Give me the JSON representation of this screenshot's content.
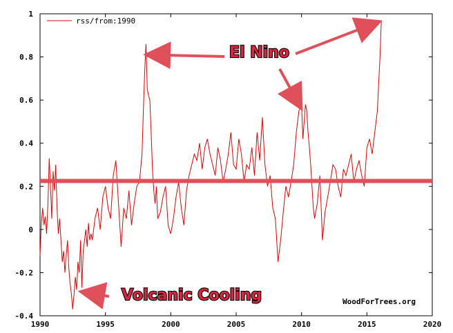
{
  "chart_data": {
    "type": "line",
    "series": [
      {
        "name": "rss/from:1990",
        "color": "#dd0000",
        "x": [
          1990.0,
          1990.1,
          1990.2,
          1990.3,
          1990.4,
          1990.5,
          1990.6,
          1990.7,
          1990.8,
          1990.9,
          1991.0,
          1991.1,
          1991.2,
          1991.3,
          1991.4,
          1991.5,
          1991.6,
          1991.7,
          1991.8,
          1991.9,
          1992.0,
          1992.1,
          1992.2,
          1992.3,
          1992.4,
          1992.5,
          1992.6,
          1992.7,
          1992.8,
          1992.9,
          1993.0,
          1993.1,
          1993.2,
          1993.3,
          1993.4,
          1993.5,
          1993.6,
          1993.7,
          1993.8,
          1993.9,
          1994.0,
          1994.2,
          1994.4,
          1994.6,
          1994.8,
          1995.0,
          1995.2,
          1995.4,
          1995.6,
          1995.8,
          1996.0,
          1996.2,
          1996.4,
          1996.6,
          1996.8,
          1997.0,
          1997.2,
          1997.4,
          1997.6,
          1997.8,
          1997.9,
          1998.0,
          1998.1,
          1998.2,
          1998.3,
          1998.4,
          1998.5,
          1998.6,
          1998.7,
          1998.8,
          1998.9,
          1999.0,
          1999.2,
          1999.4,
          1999.6,
          1999.8,
          2000.0,
          2000.2,
          2000.4,
          2000.6,
          2000.8,
          2001.0,
          2001.2,
          2001.4,
          2001.6,
          2001.8,
          2002.0,
          2002.2,
          2002.4,
          2002.6,
          2002.8,
          2003.0,
          2003.2,
          2003.4,
          2003.6,
          2003.8,
          2004.0,
          2004.2,
          2004.4,
          2004.6,
          2004.8,
          2005.0,
          2005.2,
          2005.4,
          2005.6,
          2005.8,
          2006.0,
          2006.2,
          2006.4,
          2006.6,
          2006.8,
          2007.0,
          2007.2,
          2007.4,
          2007.6,
          2007.8,
          2008.0,
          2008.2,
          2008.4,
          2008.6,
          2008.8,
          2009.0,
          2009.2,
          2009.4,
          2009.6,
          2009.8,
          2010.0,
          2010.1,
          2010.2,
          2010.3,
          2010.4,
          2010.5,
          2010.6,
          2010.7,
          2010.8,
          2010.9,
          2011.0,
          2011.2,
          2011.4,
          2011.6,
          2011.8,
          2012.0,
          2012.2,
          2012.4,
          2012.6,
          2012.8,
          2013.0,
          2013.2,
          2013.4,
          2013.6,
          2013.8,
          2014.0,
          2014.2,
          2014.4,
          2014.6,
          2014.8,
          2015.0,
          2015.2,
          2015.4,
          2015.6,
          2015.8,
          2015.9,
          2016.0,
          2016.1
        ],
        "y": [
          -0.12,
          0.03,
          0.1,
          0.02,
          0.06,
          -0.02,
          0.12,
          0.33,
          0.2,
          0.05,
          0.27,
          0.18,
          0.3,
          0.1,
          -0.02,
          0.05,
          -0.05,
          -0.15,
          -0.1,
          -0.2,
          -0.12,
          -0.05,
          -0.18,
          -0.25,
          -0.3,
          -0.37,
          -0.3,
          -0.22,
          -0.28,
          -0.15,
          -0.2,
          -0.05,
          -0.27,
          -0.1,
          -0.05,
          0.0,
          -0.08,
          0.03,
          -0.05,
          -0.02,
          -0.05,
          0.05,
          0.1,
          0.0,
          0.15,
          0.2,
          0.1,
          0.05,
          0.25,
          0.32,
          0.12,
          -0.08,
          0.1,
          0.05,
          0.18,
          0.02,
          0.12,
          0.2,
          0.22,
          0.35,
          0.55,
          0.73,
          0.86,
          0.65,
          0.62,
          0.6,
          0.45,
          0.28,
          0.18,
          0.12,
          0.2,
          0.05,
          0.08,
          0.15,
          0.2,
          0.02,
          -0.02,
          0.05,
          0.15,
          0.22,
          0.1,
          0.02,
          0.18,
          0.25,
          0.3,
          0.35,
          0.32,
          0.4,
          0.28,
          0.38,
          0.42,
          0.35,
          0.3,
          0.25,
          0.38,
          0.32,
          0.22,
          0.28,
          0.35,
          0.45,
          0.3,
          0.28,
          0.42,
          0.35,
          0.22,
          0.3,
          0.28,
          0.38,
          0.25,
          0.45,
          0.32,
          0.52,
          0.3,
          0.2,
          0.25,
          0.1,
          0.05,
          -0.15,
          -0.05,
          0.08,
          0.2,
          0.15,
          0.22,
          0.3,
          0.45,
          0.55,
          0.58,
          0.42,
          0.5,
          0.58,
          0.55,
          0.45,
          0.38,
          0.3,
          0.2,
          0.1,
          0.05,
          0.12,
          0.25,
          -0.05,
          0.08,
          0.15,
          0.22,
          0.3,
          0.28,
          0.2,
          0.15,
          0.28,
          0.25,
          0.3,
          0.35,
          0.22,
          0.28,
          0.32,
          0.25,
          0.2,
          0.38,
          0.42,
          0.35,
          0.45,
          0.55,
          0.68,
          0.8,
          0.97
        ]
      }
    ],
    "xlim": [
      1990,
      2020
    ],
    "ylim": [
      -0.4,
      1.0
    ],
    "xticks": [
      1990,
      1995,
      2000,
      2005,
      2010,
      2015,
      2020
    ],
    "yticks": [
      -0.4,
      -0.2,
      0,
      0.2,
      0.4,
      0.6,
      0.8,
      1
    ],
    "xtick_labels": [
      "1990",
      "1995",
      "2000",
      "2005",
      "2010",
      "2015",
      "2020"
    ],
    "ytick_labels": [
      "-0.4",
      "-0.2",
      "0",
      "0.2",
      "0.4",
      "0.6",
      "0.8",
      "1"
    ],
    "grid": false,
    "legend_position": "top-left",
    "reference_line": {
      "y": 0.225,
      "color": "#e0505a"
    },
    "watermark": "WoodForTrees.org",
    "annotations": [
      {
        "label": "El Nino",
        "arrows": [
          {
            "to_x": 1998.3,
            "to_y": 0.81
          },
          {
            "to_x": 2015.8,
            "to_y": 0.96
          },
          {
            "to_x": 2009.9,
            "to_y": 0.57
          }
        ]
      },
      {
        "label": "Volcanic Cooling",
        "arrows": [
          {
            "to_x": 1993.3,
            "to_y": -0.29
          }
        ]
      }
    ]
  }
}
